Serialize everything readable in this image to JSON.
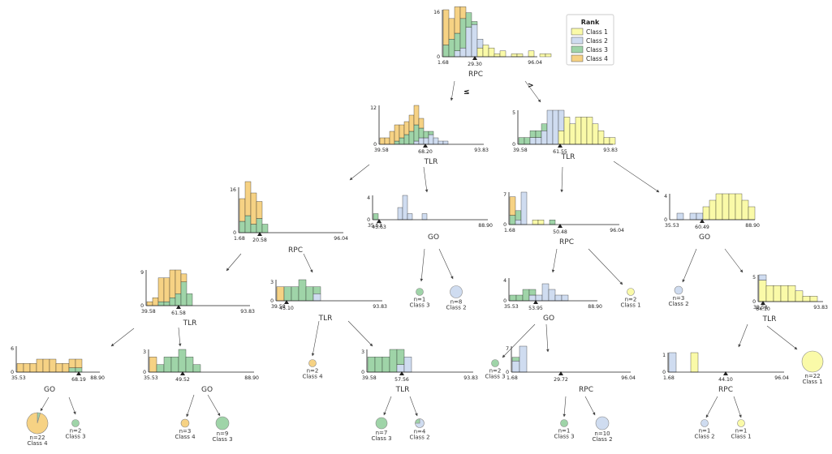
{
  "colors": {
    "Class 1": "#fafaa8",
    "Class 2": "#cfdcf0",
    "Class 3": "#9fd4a8",
    "Class 4": "#f6d284"
  },
  "legend": {
    "title": "Rank",
    "items": [
      "Class 1",
      "Class 2",
      "Class 3",
      "Class 4"
    ]
  },
  "edge_labels": {
    "left": "≤",
    "right": ">"
  },
  "nodes": [
    {
      "id": "root",
      "feature": "RPC",
      "xmin": "1.68",
      "xmax": "96.04",
      "split": "29.30",
      "ymax": "16",
      "bins": [
        [
          0,
          0,
          4,
          12
        ],
        [
          0,
          0,
          6,
          7
        ],
        [
          0,
          2,
          6,
          9
        ],
        [
          0,
          3,
          10,
          4
        ],
        [
          0,
          10,
          5,
          0
        ],
        [
          0,
          11,
          1,
          0
        ],
        [
          3,
          3,
          0,
          0
        ],
        [
          4,
          0,
          0,
          0
        ],
        [
          3,
          0,
          0,
          0
        ],
        [
          1,
          0,
          0,
          0
        ],
        [
          2,
          0,
          0,
          0
        ],
        [
          0,
          0,
          0,
          0
        ],
        [
          1,
          0,
          0,
          0
        ],
        [
          1,
          0,
          0,
          0
        ],
        [
          0,
          0,
          0,
          0
        ],
        [
          2,
          0,
          0,
          0
        ],
        [
          0,
          0,
          0,
          0
        ],
        [
          1,
          0,
          0,
          0
        ],
        [
          1,
          0,
          0,
          0
        ]
      ]
    },
    {
      "id": "n_tlr_l",
      "feature": "TLR",
      "xmin": "39.58",
      "xmax": "93.83",
      "split": "68.20",
      "ymax": "12",
      "bins": [
        [
          0,
          0,
          0,
          2
        ],
        [
          0,
          0,
          0,
          2
        ],
        [
          0,
          0,
          0,
          4
        ],
        [
          0,
          0,
          1,
          5
        ],
        [
          0,
          0,
          2,
          4
        ],
        [
          0,
          0,
          3,
          4
        ],
        [
          0,
          0,
          4,
          5
        ],
        [
          0,
          1,
          5,
          6
        ],
        [
          0,
          2,
          3,
          3
        ],
        [
          0,
          2,
          2,
          0
        ],
        [
          0,
          3,
          1,
          0
        ],
        [
          0,
          2,
          0,
          0
        ],
        [
          0,
          1,
          0,
          0
        ],
        [
          0,
          1,
          0,
          0
        ]
      ]
    },
    {
      "id": "n_tlr_r",
      "feature": "TLR",
      "xmin": "39.58",
      "xmax": "93.83",
      "split": "61.55",
      "ymax": "5",
      "bins": [
        [
          0,
          0,
          1,
          0
        ],
        [
          0,
          0,
          1,
          0
        ],
        [
          0,
          1,
          1,
          0
        ],
        [
          0,
          1,
          1,
          0
        ],
        [
          0,
          2,
          1,
          0
        ],
        [
          0,
          5,
          0,
          0
        ],
        [
          0,
          5,
          0,
          0
        ],
        [
          2,
          3,
          0,
          0
        ],
        [
          4,
          0,
          0,
          0
        ],
        [
          3,
          0,
          0,
          0
        ],
        [
          4,
          0,
          0,
          0
        ],
        [
          4,
          0,
          0,
          0
        ],
        [
          4,
          0,
          0,
          0
        ],
        [
          3,
          0,
          0,
          0
        ],
        [
          2,
          0,
          0,
          0
        ],
        [
          1,
          0,
          0,
          0
        ],
        [
          1,
          0,
          0,
          0
        ]
      ]
    },
    {
      "id": "n_rpc_ll",
      "feature": "RPC",
      "xmin": "1.68",
      "xmax": "96.04",
      "split": "20.58",
      "ymax": "16",
      "bins": [
        [
          0,
          0,
          4,
          8
        ],
        [
          0,
          0,
          6,
          12
        ],
        [
          0,
          0,
          3,
          11
        ],
        [
          0,
          0,
          5,
          6
        ],
        [
          0,
          0,
          3,
          0
        ]
      ]
    },
    {
      "id": "n_go_lr",
      "feature": "GO",
      "xmin": "35.53",
      "xmax": "88.90",
      "split": "45.63",
      "ymax": "4",
      "bins": [
        [
          0,
          0,
          1,
          0
        ],
        [
          0,
          0,
          0,
          0
        ],
        [
          0,
          0,
          0,
          0
        ],
        [
          0,
          0,
          0,
          0
        ],
        [
          0,
          0,
          0,
          0
        ],
        [
          0,
          2,
          0,
          0
        ],
        [
          0,
          4,
          0,
          0
        ],
        [
          0,
          1,
          0,
          0
        ],
        [
          0,
          0,
          0,
          0
        ],
        [
          0,
          0,
          0,
          0
        ],
        [
          0,
          1,
          0,
          0
        ]
      ]
    },
    {
      "id": "n_rpc_rl",
      "feature": "RPC",
      "xmin": "1.68",
      "xmax": "96.04",
      "split": "50.48",
      "ymax": "7",
      "bins": [
        [
          0,
          0,
          2,
          4
        ],
        [
          0,
          1,
          2,
          0
        ],
        [
          0,
          7,
          0,
          0
        ],
        [
          0,
          0,
          0,
          0
        ],
        [
          1,
          0,
          0,
          0
        ],
        [
          1,
          0,
          0,
          0
        ],
        [
          0,
          0,
          0,
          0
        ],
        [
          0,
          0,
          1,
          0
        ]
      ]
    },
    {
      "id": "n_go_rr",
      "feature": "GO",
      "xmin": "35.53",
      "xmax": "88.90",
      "split": "60.49",
      "ymax": "4",
      "bins": [
        [
          0,
          0,
          0,
          0
        ],
        [
          0,
          1,
          0,
          0
        ],
        [
          0,
          0,
          0,
          0
        ],
        [
          0,
          1,
          0,
          0
        ],
        [
          0,
          1,
          0,
          0
        ],
        [
          2,
          0,
          0,
          0
        ],
        [
          3,
          0,
          0,
          0
        ],
        [
          4,
          0,
          0,
          0
        ],
        [
          4,
          0,
          0,
          0
        ],
        [
          4,
          0,
          0,
          0
        ],
        [
          4,
          0,
          0,
          0
        ],
        [
          3,
          0,
          0,
          0
        ],
        [
          2,
          0,
          0,
          0
        ]
      ]
    },
    {
      "id": "n_tlr_lll",
      "feature": "TLR",
      "xmin": "39.58",
      "xmax": "93.83",
      "split": "61.58",
      "ymax": "9",
      "bins": [
        [
          0,
          0,
          0,
          1
        ],
        [
          0,
          0,
          0,
          2
        ],
        [
          0,
          0,
          1,
          6
        ],
        [
          0,
          0,
          1,
          6
        ],
        [
          0,
          0,
          2,
          7
        ],
        [
          0,
          0,
          3,
          6
        ],
        [
          0,
          0,
          6,
          2
        ],
        [
          0,
          0,
          3,
          0
        ]
      ]
    },
    {
      "id": "n_tlr_llr",
      "feature": "TLR",
      "xmin": "39.58",
      "xmax": "93.83",
      "split": "45.10",
      "ymax": "3",
      "bins": [
        [
          0,
          0,
          0,
          2
        ],
        [
          0,
          0,
          2,
          0
        ],
        [
          0,
          0,
          2,
          0
        ],
        [
          0,
          0,
          3,
          0
        ],
        [
          0,
          0,
          2,
          0
        ],
        [
          0,
          1,
          1,
          0
        ]
      ]
    },
    {
      "id": "n_go_rll",
      "feature": "GO",
      "xmin": "35.53",
      "xmax": "88.90",
      "split": "53.95",
      "ymax": "4",
      "bins": [
        [
          0,
          0,
          1,
          0
        ],
        [
          0,
          0,
          1,
          0
        ],
        [
          0,
          0,
          2,
          0
        ],
        [
          0,
          1,
          1,
          0
        ],
        [
          0,
          1,
          0,
          0
        ],
        [
          0,
          3,
          0,
          0
        ],
        [
          0,
          2,
          0,
          0
        ],
        [
          0,
          1,
          0,
          0
        ],
        [
          0,
          1,
          0,
          0
        ]
      ]
    },
    {
      "id": "n_tlr_rrr",
      "feature": "TLR",
      "xmin": "39.58",
      "xmax": "93.83",
      "split": "64.10",
      "ymax": "5",
      "bins": [
        [
          4,
          1,
          0,
          0
        ],
        [
          3,
          0,
          0,
          0
        ],
        [
          3,
          0,
          0,
          0
        ],
        [
          3,
          0,
          0,
          0
        ],
        [
          3,
          0,
          0,
          0
        ],
        [
          2,
          0,
          0,
          0
        ],
        [
          1,
          0,
          0,
          0
        ],
        [
          1,
          0,
          0,
          0
        ]
      ]
    },
    {
      "id": "n_go_llll",
      "feature": "GO",
      "xmin": "35.53",
      "xmax": "88.90",
      "split": "68.19",
      "ymax": "6",
      "bins": [
        [
          0,
          0,
          0,
          2
        ],
        [
          0,
          0,
          0,
          2
        ],
        [
          0,
          0,
          0,
          2
        ],
        [
          0,
          0,
          0,
          3
        ],
        [
          0,
          0,
          0,
          3
        ],
        [
          0,
          0,
          0,
          3
        ],
        [
          0,
          0,
          0,
          2
        ],
        [
          0,
          0,
          0,
          2
        ],
        [
          0,
          0,
          1,
          2
        ],
        [
          0,
          0,
          1,
          2
        ]
      ]
    },
    {
      "id": "n_go_lllr",
      "feature": "GO",
      "xmin": "35.53",
      "xmax": "88.90",
      "split": "49.52",
      "ymax": "3",
      "bins": [
        [
          0,
          0,
          0,
          2
        ],
        [
          0,
          0,
          1,
          0
        ],
        [
          0,
          0,
          2,
          0
        ],
        [
          0,
          0,
          2,
          0
        ],
        [
          0,
          0,
          3,
          0
        ],
        [
          0,
          0,
          2,
          0
        ],
        [
          0,
          0,
          1,
          0
        ]
      ]
    },
    {
      "id": "n_tlr_llrr",
      "feature": "TLR",
      "xmin": "39.58",
      "xmax": "93.83",
      "split": "57.56",
      "ymax": "3",
      "bins": [
        [
          0,
          0,
          2,
          0
        ],
        [
          0,
          0,
          2,
          0
        ],
        [
          0,
          0,
          2,
          0
        ],
        [
          0,
          0,
          3,
          0
        ],
        [
          0,
          1,
          2,
          0
        ],
        [
          0,
          2,
          0,
          0
        ]
      ]
    },
    {
      "id": "n_rpc_rllr",
      "feature": "RPC",
      "xmin": "1.68",
      "xmax": "96.04",
      "split": "29.72",
      "ymax": "7",
      "bins": [
        [
          0,
          3,
          1,
          0
        ],
        [
          0,
          7,
          0,
          0
        ]
      ]
    },
    {
      "id": "n_rpc_rrrl",
      "feature": "RPC",
      "xmin": "1.68",
      "xmax": "96.04",
      "split": "44.10",
      "ymax": "1",
      "bins": [
        [
          0,
          1,
          0,
          0
        ],
        [
          0,
          0,
          0,
          0
        ],
        [
          0,
          0,
          0,
          0
        ],
        [
          1,
          0,
          0,
          0
        ]
      ]
    }
  ],
  "leaves": [
    {
      "id": "leaf_go_l_l",
      "n": "n=1",
      "cls": "Class 3",
      "fracs": [
        0,
        0,
        1,
        0
      ]
    },
    {
      "id": "leaf_go_l_r",
      "n": "n=8",
      "cls": "Class 2",
      "fracs": [
        0,
        1,
        0,
        0
      ]
    },
    {
      "id": "leaf_rpc_r_r",
      "n": "n=2",
      "cls": "Class 1",
      "fracs": [
        1,
        0,
        0,
        0
      ]
    },
    {
      "id": "leaf_go_rr_l",
      "n": "n=3",
      "cls": "Class 2",
      "fracs": [
        0,
        1,
        0,
        0
      ]
    },
    {
      "id": "leaf_tlr_llr_l",
      "n": "n=2",
      "cls": "Class 4",
      "fracs": [
        0,
        0,
        0,
        1
      ]
    },
    {
      "id": "leaf_go_rll_l",
      "n": "n=2",
      "cls": "Class 3",
      "fracs": [
        0,
        0,
        1,
        0
      ]
    },
    {
      "id": "leaf_tlr_rrr_r",
      "n": "n=22",
      "cls": "Class 1",
      "fracs": [
        1,
        0,
        0,
        0
      ]
    },
    {
      "id": "leaf_go_llll_l",
      "n": "n=22",
      "cls": "Class 4",
      "fracs": [
        0,
        0,
        0.045,
        0.955
      ]
    },
    {
      "id": "leaf_go_llll_r",
      "n": "n=2",
      "cls": "Class 3",
      "fracs": [
        0,
        0,
        1,
        0
      ]
    },
    {
      "id": "leaf_go_lllr_l",
      "n": "n=3",
      "cls": "Class 4",
      "fracs": [
        0,
        0,
        0,
        1
      ]
    },
    {
      "id": "leaf_go_lllr_r",
      "n": "n=9",
      "cls": "Class 3",
      "fracs": [
        0,
        0,
        1,
        0
      ]
    },
    {
      "id": "leaf_tlr_llrr_l",
      "n": "n=7",
      "cls": "Class 3",
      "fracs": [
        0,
        0,
        1,
        0
      ]
    },
    {
      "id": "leaf_tlr_llrr_r",
      "n": "n=4",
      "cls": "Class 2",
      "fracs": [
        0,
        0.75,
        0.25,
        0
      ]
    },
    {
      "id": "leaf_rpc_rllr_l",
      "n": "n=1",
      "cls": "Class 3",
      "fracs": [
        0,
        0,
        1,
        0
      ]
    },
    {
      "id": "leaf_rpc_rllr_r",
      "n": "n=10",
      "cls": "Class 2",
      "fracs": [
        0,
        1,
        0,
        0
      ]
    },
    {
      "id": "leaf_rpc_rrrl_l",
      "n": "n=1",
      "cls": "Class 2",
      "fracs": [
        0,
        1,
        0,
        0
      ]
    },
    {
      "id": "leaf_rpc_rrrl_r",
      "n": "n=1",
      "cls": "Class 1",
      "fracs": [
        1,
        0,
        0,
        0
      ]
    }
  ]
}
